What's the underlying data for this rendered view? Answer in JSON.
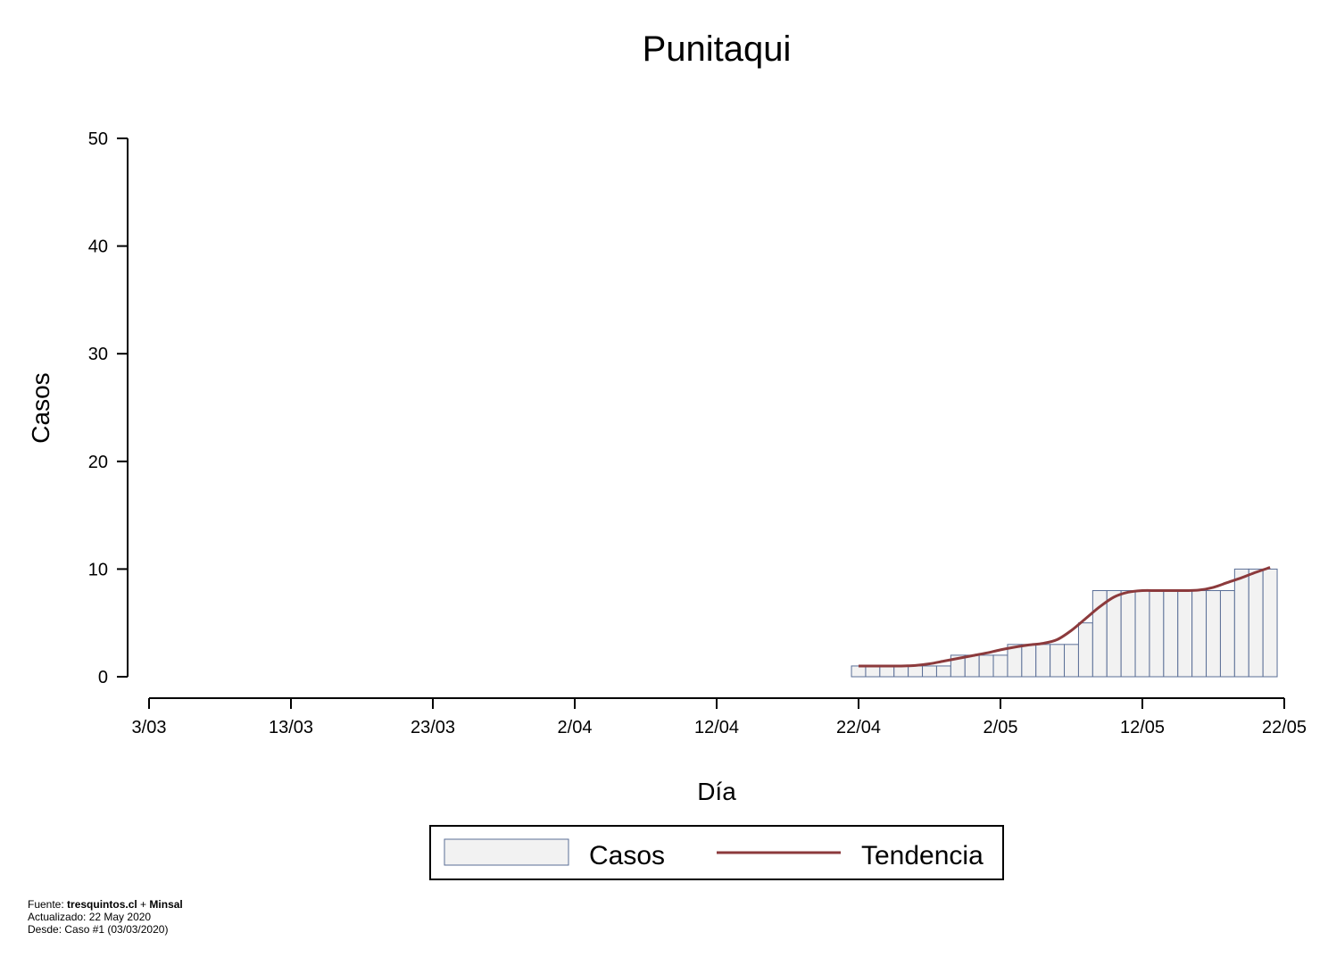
{
  "chart_data": {
    "type": "bar",
    "title": "Punitaqui",
    "xlabel": "Día",
    "ylabel": "Casos",
    "ylim": [
      0,
      50
    ],
    "yticks": [
      0,
      10,
      20,
      30,
      40,
      50
    ],
    "xlim": [
      "2020-03-03",
      "2020-05-22"
    ],
    "xticks": [
      {
        "date": "2020-03-03",
        "label": "3/03"
      },
      {
        "date": "2020-03-13",
        "label": "13/03"
      },
      {
        "date": "2020-03-23",
        "label": "23/03"
      },
      {
        "date": "2020-04-02",
        "label": "2/04"
      },
      {
        "date": "2020-04-12",
        "label": "12/04"
      },
      {
        "date": "2020-04-22",
        "label": "22/04"
      },
      {
        "date": "2020-05-02",
        "label": "2/05"
      },
      {
        "date": "2020-05-12",
        "label": "12/05"
      },
      {
        "date": "2020-05-22",
        "label": "22/05"
      }
    ],
    "grid": false,
    "legend": "bottom",
    "series": [
      {
        "name": "Casos",
        "kind": "bar",
        "color": "#f2f2f2",
        "edge_color": "#5a6e96",
        "dates": [
          "2020-04-22",
          "2020-04-23",
          "2020-04-24",
          "2020-04-25",
          "2020-04-26",
          "2020-04-27",
          "2020-04-28",
          "2020-04-29",
          "2020-04-30",
          "2020-05-01",
          "2020-05-02",
          "2020-05-03",
          "2020-05-04",
          "2020-05-05",
          "2020-05-06",
          "2020-05-07",
          "2020-05-08",
          "2020-05-09",
          "2020-05-10",
          "2020-05-11",
          "2020-05-12",
          "2020-05-13",
          "2020-05-14",
          "2020-05-15",
          "2020-05-16",
          "2020-05-17",
          "2020-05-18",
          "2020-05-19",
          "2020-05-20",
          "2020-05-21"
        ],
        "values": [
          1,
          1,
          1,
          1,
          1,
          1,
          1,
          2,
          2,
          2,
          2,
          3,
          3,
          3,
          3,
          3,
          5,
          8,
          8,
          8,
          8,
          8,
          8,
          8,
          8,
          8,
          8,
          10,
          10,
          10
        ]
      },
      {
        "name": "Tendencia",
        "kind": "line",
        "color": "#8c3a3c",
        "dates": [
          "2020-04-22",
          "2020-04-23",
          "2020-04-24",
          "2020-04-25",
          "2020-04-26",
          "2020-04-27",
          "2020-04-28",
          "2020-04-29",
          "2020-04-30",
          "2020-05-01",
          "2020-05-02",
          "2020-05-03",
          "2020-05-04",
          "2020-05-05",
          "2020-05-06",
          "2020-05-07",
          "2020-05-08",
          "2020-05-09",
          "2020-05-10",
          "2020-05-11",
          "2020-05-12",
          "2020-05-13",
          "2020-05-14",
          "2020-05-15",
          "2020-05-16",
          "2020-05-17",
          "2020-05-18",
          "2020-05-19",
          "2020-05-20",
          "2020-05-21"
        ],
        "values": [
          1.0,
          1.0,
          1.0,
          1.0,
          1.05,
          1.2,
          1.45,
          1.7,
          1.95,
          2.2,
          2.5,
          2.75,
          2.95,
          3.1,
          3.45,
          4.3,
          5.4,
          6.5,
          7.4,
          7.85,
          8.0,
          8.0,
          8.0,
          8.0,
          8.05,
          8.3,
          8.75,
          9.2,
          9.7,
          10.15
        ]
      }
    ]
  },
  "footer": {
    "source_prefix": "Fuente: ",
    "source_site": "tresquintos.cl",
    "source_join": " + ",
    "source_org": "Minsal",
    "updated": "Actualizado: 22 May 2020",
    "since": "Desde: Caso #1  (03/03/2020)"
  }
}
